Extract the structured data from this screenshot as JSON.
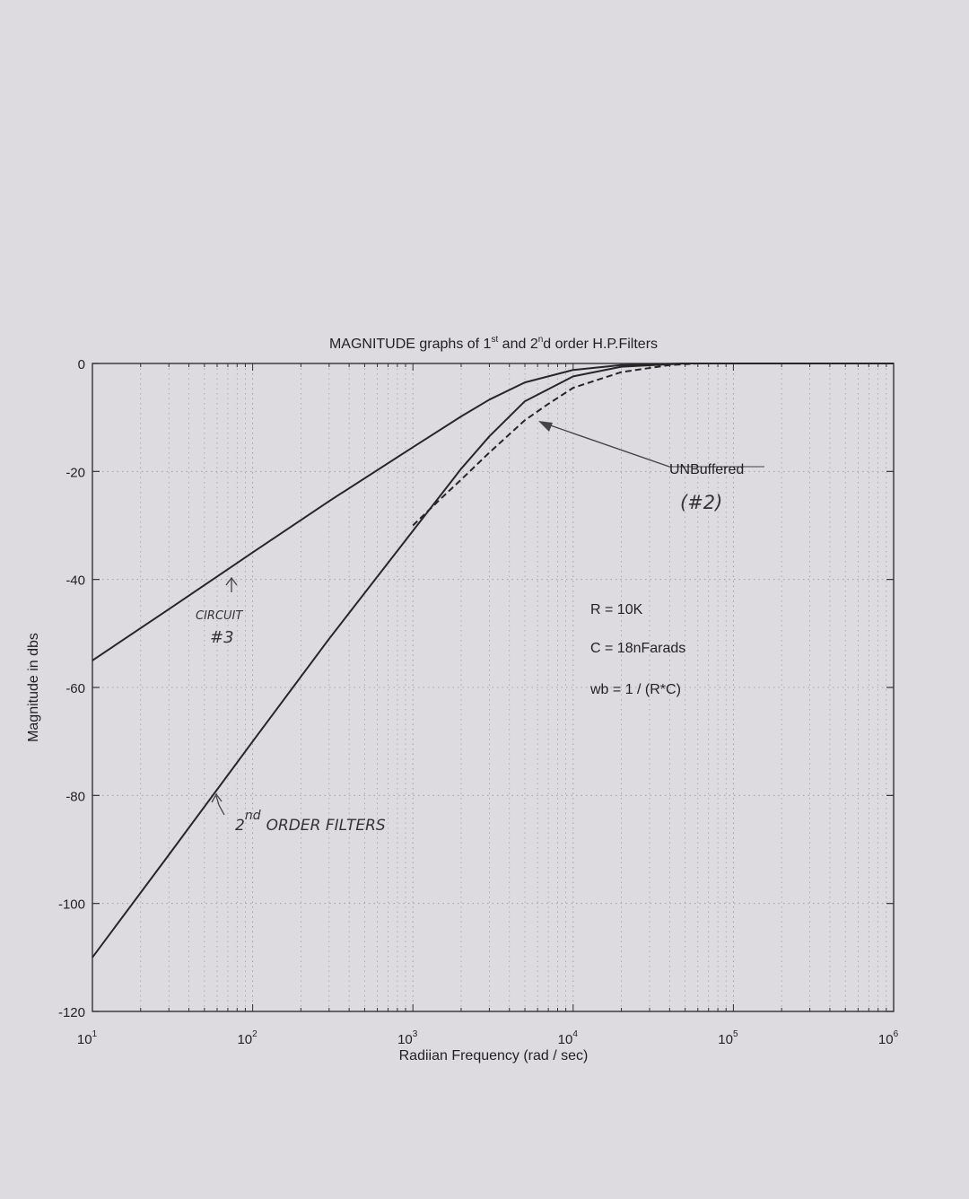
{
  "chart_data": {
    "type": "line",
    "title_parts": {
      "pre": "MAGNITUDE graphs of 1",
      "sup1": "st",
      "mid": " and 2",
      "sup2": "n",
      "post": "d order H.P.Filters"
    },
    "xlabel": "Radiian Frequency (rad / sec)",
    "ylabel": "Magnitude in dbs",
    "xscale": "log",
    "xlim": [
      10,
      1000000
    ],
    "ylim": [
      -120,
      0
    ],
    "xticks": [
      {
        "base": "10",
        "exp": "1"
      },
      {
        "base": "10",
        "exp": "2"
      },
      {
        "base": "10",
        "exp": "3"
      },
      {
        "base": "10",
        "exp": "4"
      },
      {
        "base": "10",
        "exp": "5"
      },
      {
        "base": "10",
        "exp": "6"
      }
    ],
    "yticks": [
      "0",
      "-20",
      "-40",
      "-60",
      "-80",
      "-100",
      "-120"
    ],
    "grid": true,
    "series": [
      {
        "style": "solid",
        "x": [
          10,
          30,
          100,
          300,
          1000,
          2000,
          3000,
          5000,
          10000,
          20000,
          50000
        ],
        "y": [
          -55,
          -45.5,
          -35,
          -25.5,
          -15.5,
          -9.8,
          -6.7,
          -3.5,
          -1.2,
          -0.3,
          0
        ]
      },
      {
        "style": "solid",
        "x": [
          10,
          30,
          100,
          300,
          1000,
          2000,
          3000,
          5000,
          10000,
          20000,
          50000
        ],
        "y": [
          -110,
          -91,
          -70,
          -51,
          -31,
          -19.5,
          -13.5,
          -7,
          -2.4,
          -0.6,
          0
        ]
      },
      {
        "style": "dashed",
        "x": [
          1000,
          1500,
          2000,
          3000,
          5000,
          7000,
          10000,
          20000,
          40000,
          60000
        ],
        "y": [
          -30,
          -25,
          -21.5,
          -16.5,
          -10.5,
          -7.5,
          -4.5,
          -1.6,
          -0.3,
          0
        ]
      }
    ],
    "annotations": {
      "unbuffered": "UNBuffered",
      "unbuffered_num": "(#2)",
      "circuit": "CIRCUIT",
      "circuit_num": "#3",
      "second_order_prefix": "2",
      "second_order_sup": "nd",
      "second_order_rest": "ORDER  FILTERS",
      "params": [
        "R = 10K",
        "C = 18nFarads",
        "wb = 1 / (R*C)"
      ]
    }
  }
}
